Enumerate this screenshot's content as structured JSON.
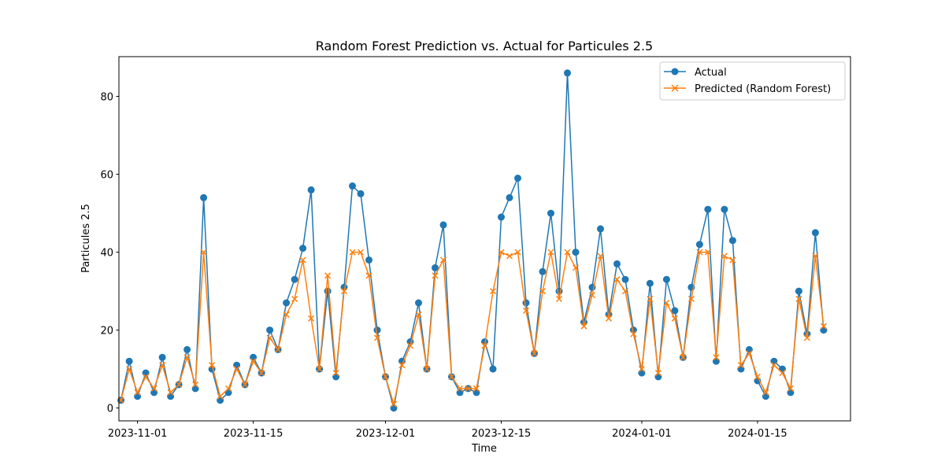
{
  "chart_data": {
    "type": "line",
    "title": "Random Forest Prediction vs. Actual for Particules 2.5",
    "xlabel": "Time",
    "ylabel": "Particules 2.5",
    "x_range": [
      "2023-10-29T18:00",
      "2024-01-26T06:00"
    ],
    "ylim": [
      -3.3,
      90.2
    ],
    "x_ticks": [
      {
        "date": "2023-11-01",
        "label": "2023-11-01"
      },
      {
        "date": "2023-11-15",
        "label": "2023-11-15"
      },
      {
        "date": "2023-12-01",
        "label": "2023-12-01"
      },
      {
        "date": "2023-12-15",
        "label": "2023-12-15"
      },
      {
        "date": "2024-01-01",
        "label": "2024-01-01"
      },
      {
        "date": "2024-01-15",
        "label": "2024-01-15"
      }
    ],
    "y_ticks": [
      0,
      20,
      40,
      60,
      80
    ],
    "grid": false,
    "legend_position": "upper right",
    "series": [
      {
        "name": "Actual",
        "color": "#1f77b4",
        "marker": "circle",
        "points": [
          [
            "2023-10-30",
            2
          ],
          [
            "2023-10-31",
            12
          ],
          [
            "2023-11-01",
            3
          ],
          [
            "2023-11-02",
            9
          ],
          [
            "2023-11-03",
            4
          ],
          [
            "2023-11-04",
            13
          ],
          [
            "2023-11-05",
            3
          ],
          [
            "2023-11-06",
            6
          ],
          [
            "2023-11-07",
            15
          ],
          [
            "2023-11-08",
            5
          ],
          [
            "2023-11-09",
            54
          ],
          [
            "2023-11-10",
            10
          ],
          [
            "2023-11-11",
            2
          ],
          [
            "2023-11-12",
            4
          ],
          [
            "2023-11-13",
            11
          ],
          [
            "2023-11-14",
            6
          ],
          [
            "2023-11-15",
            13
          ],
          [
            "2023-11-16",
            9
          ],
          [
            "2023-11-17",
            20
          ],
          [
            "2023-11-18",
            15
          ],
          [
            "2023-11-19",
            27
          ],
          [
            "2023-11-20",
            33
          ],
          [
            "2023-11-21",
            41
          ],
          [
            "2023-11-22",
            56
          ],
          [
            "2023-11-23",
            10
          ],
          [
            "2023-11-24",
            30
          ],
          [
            "2023-11-25",
            8
          ],
          [
            "2023-11-26",
            31
          ],
          [
            "2023-11-27",
            57
          ],
          [
            "2023-11-28",
            55
          ],
          [
            "2023-11-29",
            38
          ],
          [
            "2023-11-30",
            20
          ],
          [
            "2023-12-01",
            8
          ],
          [
            "2023-12-02",
            0
          ],
          [
            "2023-12-03",
            12
          ],
          [
            "2023-12-04",
            17
          ],
          [
            "2023-12-05",
            27
          ],
          [
            "2023-12-06",
            10
          ],
          [
            "2023-12-07",
            36
          ],
          [
            "2023-12-08",
            47
          ],
          [
            "2023-12-09",
            8
          ],
          [
            "2023-12-10",
            4
          ],
          [
            "2023-12-11",
            5
          ],
          [
            "2023-12-12",
            4
          ],
          [
            "2023-12-13",
            17
          ],
          [
            "2023-12-14",
            10
          ],
          [
            "2023-12-15",
            49
          ],
          [
            "2023-12-16",
            54
          ],
          [
            "2023-12-17",
            59
          ],
          [
            "2023-12-18",
            27
          ],
          [
            "2023-12-19",
            14
          ],
          [
            "2023-12-20",
            35
          ],
          [
            "2023-12-21",
            50
          ],
          [
            "2023-12-22",
            30
          ],
          [
            "2023-12-23",
            86
          ],
          [
            "2023-12-24",
            40
          ],
          [
            "2023-12-25",
            22
          ],
          [
            "2023-12-26",
            31
          ],
          [
            "2023-12-27",
            46
          ],
          [
            "2023-12-28",
            24
          ],
          [
            "2023-12-29",
            37
          ],
          [
            "2023-12-30",
            33
          ],
          [
            "2023-12-31",
            20
          ],
          [
            "2024-01-01",
            9
          ],
          [
            "2024-01-02",
            32
          ],
          [
            "2024-01-03",
            8
          ],
          [
            "2024-01-04",
            33
          ],
          [
            "2024-01-05",
            25
          ],
          [
            "2024-01-06",
            13
          ],
          [
            "2024-01-07",
            31
          ],
          [
            "2024-01-08",
            42
          ],
          [
            "2024-01-09",
            51
          ],
          [
            "2024-01-10",
            12
          ],
          [
            "2024-01-11",
            51
          ],
          [
            "2024-01-12",
            43
          ],
          [
            "2024-01-13",
            10
          ],
          [
            "2024-01-14",
            15
          ],
          [
            "2024-01-15",
            7
          ],
          [
            "2024-01-16",
            3
          ],
          [
            "2024-01-17",
            12
          ],
          [
            "2024-01-18",
            10
          ],
          [
            "2024-01-19",
            4
          ],
          [
            "2024-01-20",
            30
          ],
          [
            "2024-01-21",
            19
          ],
          [
            "2024-01-22",
            45
          ],
          [
            "2024-01-23",
            20
          ]
        ]
      },
      {
        "name": "Predicted (Random Forest)",
        "color": "#ff7f0e",
        "marker": "x",
        "points": [
          [
            "2023-10-30",
            2
          ],
          [
            "2023-10-31",
            10
          ],
          [
            "2023-11-01",
            4
          ],
          [
            "2023-11-02",
            8
          ],
          [
            "2023-11-03",
            5
          ],
          [
            "2023-11-04",
            11
          ],
          [
            "2023-11-05",
            4
          ],
          [
            "2023-11-06",
            6
          ],
          [
            "2023-11-07",
            13
          ],
          [
            "2023-11-08",
            6
          ],
          [
            "2023-11-09",
            40
          ],
          [
            "2023-11-10",
            11
          ],
          [
            "2023-11-11",
            3
          ],
          [
            "2023-11-12",
            5
          ],
          [
            "2023-11-13",
            10
          ],
          [
            "2023-11-14",
            6
          ],
          [
            "2023-11-15",
            12
          ],
          [
            "2023-11-16",
            9
          ],
          [
            "2023-11-17",
            18
          ],
          [
            "2023-11-18",
            15
          ],
          [
            "2023-11-19",
            24
          ],
          [
            "2023-11-20",
            28
          ],
          [
            "2023-11-21",
            38
          ],
          [
            "2023-11-22",
            23
          ],
          [
            "2023-11-23",
            10
          ],
          [
            "2023-11-24",
            34
          ],
          [
            "2023-11-25",
            9
          ],
          [
            "2023-11-26",
            30
          ],
          [
            "2023-11-27",
            40
          ],
          [
            "2023-11-28",
            40
          ],
          [
            "2023-11-29",
            34
          ],
          [
            "2023-11-30",
            18
          ],
          [
            "2023-12-01",
            8
          ],
          [
            "2023-12-02",
            1
          ],
          [
            "2023-12-03",
            11
          ],
          [
            "2023-12-04",
            16
          ],
          [
            "2023-12-05",
            24
          ],
          [
            "2023-12-06",
            10
          ],
          [
            "2023-12-07",
            34
          ],
          [
            "2023-12-08",
            38
          ],
          [
            "2023-12-09",
            8
          ],
          [
            "2023-12-10",
            5
          ],
          [
            "2023-12-11",
            5
          ],
          [
            "2023-12-12",
            5
          ],
          [
            "2023-12-13",
            16
          ],
          [
            "2023-12-14",
            30
          ],
          [
            "2023-12-15",
            40
          ],
          [
            "2023-12-16",
            39
          ],
          [
            "2023-12-17",
            40
          ],
          [
            "2023-12-18",
            25
          ],
          [
            "2023-12-19",
            14
          ],
          [
            "2023-12-20",
            30
          ],
          [
            "2023-12-21",
            40
          ],
          [
            "2023-12-22",
            28
          ],
          [
            "2023-12-23",
            40
          ],
          [
            "2023-12-24",
            36
          ],
          [
            "2023-12-25",
            21
          ],
          [
            "2023-12-26",
            29
          ],
          [
            "2023-12-27",
            39
          ],
          [
            "2023-12-28",
            23
          ],
          [
            "2023-12-29",
            33
          ],
          [
            "2023-12-30",
            30
          ],
          [
            "2023-12-31",
            19
          ],
          [
            "2024-01-01",
            10
          ],
          [
            "2024-01-02",
            28
          ],
          [
            "2024-01-03",
            9
          ],
          [
            "2024-01-04",
            27
          ],
          [
            "2024-01-05",
            23
          ],
          [
            "2024-01-06",
            13
          ],
          [
            "2024-01-07",
            28
          ],
          [
            "2024-01-08",
            40
          ],
          [
            "2024-01-09",
            40
          ],
          [
            "2024-01-10",
            13
          ],
          [
            "2024-01-11",
            39
          ],
          [
            "2024-01-12",
            38
          ],
          [
            "2024-01-13",
            11
          ],
          [
            "2024-01-14",
            14
          ],
          [
            "2024-01-15",
            8
          ],
          [
            "2024-01-16",
            4
          ],
          [
            "2024-01-17",
            11
          ],
          [
            "2024-01-18",
            9
          ],
          [
            "2024-01-19",
            5
          ],
          [
            "2024-01-20",
            28
          ],
          [
            "2024-01-21",
            18
          ],
          [
            "2024-01-22",
            39
          ],
          [
            "2024-01-23",
            21
          ]
        ]
      }
    ]
  }
}
